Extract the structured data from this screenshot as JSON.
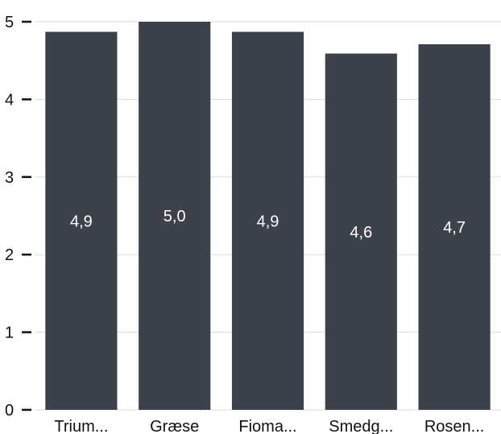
{
  "chart_data": {
    "type": "bar",
    "categories": [
      "Trium...",
      "Græse",
      "Fioma...",
      "Smedg...",
      "Rosen..."
    ],
    "values": [
      4.87,
      5.0,
      4.87,
      4.59,
      4.71
    ],
    "value_labels": [
      "4,9",
      "5,0",
      "4,9",
      "4,6",
      "4,7"
    ],
    "y_ticks": [
      0,
      1,
      2,
      3,
      4,
      5
    ],
    "ylim": [
      0,
      5
    ],
    "grid": true,
    "bar_color": "#3d4149",
    "grid_color": "#dddddd",
    "title": "",
    "xlabel": "",
    "ylabel": ""
  }
}
